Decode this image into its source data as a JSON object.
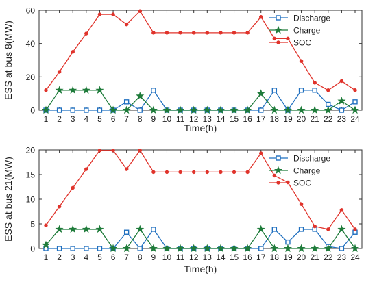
{
  "colors": {
    "discharge": "#1f6fbf",
    "charge": "#1e7b3a",
    "soc": "#e0332b",
    "axis": "#333333"
  },
  "chart_data": [
    {
      "type": "line",
      "ylabel": "ESS at bus 8(MW)",
      "xlabel": "Time(h)",
      "x": [
        1,
        2,
        3,
        4,
        5,
        6,
        7,
        8,
        9,
        10,
        11,
        12,
        13,
        14,
        15,
        16,
        17,
        18,
        19,
        20,
        21,
        22,
        23,
        24
      ],
      "xlim": [
        1,
        24
      ],
      "ylim": [
        0,
        60
      ],
      "yticks": [
        0,
        20,
        40,
        60
      ],
      "legend_position": "top-right",
      "grid": false,
      "series": [
        {
          "name": "Discharge",
          "marker": "square",
          "color_key": "discharge",
          "values": [
            0,
            0,
            0,
            0,
            0,
            0,
            5,
            0,
            12,
            0,
            0,
            0,
            0,
            0,
            0,
            0,
            0,
            12,
            0,
            12,
            12,
            3.5,
            0,
            5
          ]
        },
        {
          "name": "Charge",
          "marker": "star",
          "color_key": "charge",
          "values": [
            0,
            12,
            12,
            12,
            12,
            0,
            0,
            8.5,
            0,
            0,
            0,
            0,
            0,
            0,
            0,
            0,
            10,
            0,
            0,
            0,
            0,
            0,
            5.5,
            0
          ]
        },
        {
          "name": "SOC",
          "marker": "dot",
          "color_key": "soc",
          "values": [
            12,
            23,
            35,
            46,
            57.5,
            57.5,
            51.5,
            59.5,
            46.5,
            46.5,
            46.5,
            46.5,
            46.5,
            46.5,
            46.5,
            46.5,
            56,
            43,
            43,
            29.5,
            16.5,
            12,
            17.5,
            12
          ]
        }
      ]
    },
    {
      "type": "line",
      "ylabel": "ESS at bus 21(MW)",
      "xlabel": "Time(h)",
      "x": [
        1,
        2,
        3,
        4,
        5,
        6,
        7,
        8,
        9,
        10,
        11,
        12,
        13,
        14,
        15,
        16,
        17,
        18,
        19,
        20,
        21,
        22,
        23,
        24
      ],
      "xlim": [
        1,
        24
      ],
      "ylim": [
        0,
        20
      ],
      "yticks": [
        0,
        5,
        10,
        15,
        20
      ],
      "legend_position": "top-right",
      "grid": false,
      "series": [
        {
          "name": "Discharge",
          "marker": "square",
          "color_key": "discharge",
          "values": [
            0,
            0,
            0,
            0,
            0,
            0,
            3.3,
            0,
            3.9,
            0,
            0,
            0,
            0,
            0,
            0,
            0,
            0,
            3.9,
            1.3,
            3.9,
            3.9,
            0.4,
            0,
            3.3
          ]
        },
        {
          "name": "Charge",
          "marker": "star",
          "color_key": "charge",
          "values": [
            0.7,
            3.9,
            3.9,
            3.9,
            3.9,
            0,
            0,
            3.9,
            0,
            0,
            0,
            0,
            0,
            0,
            0,
            0,
            3.9,
            0,
            0,
            0,
            0,
            0,
            3.9,
            0
          ]
        },
        {
          "name": "SOC",
          "marker": "dot",
          "color_key": "soc",
          "values": [
            4.7,
            8.5,
            12.3,
            16.1,
            19.9,
            19.9,
            16.1,
            19.9,
            15.5,
            15.5,
            15.5,
            15.5,
            15.5,
            15.5,
            15.5,
            15.5,
            19.3,
            14.8,
            13.4,
            9.0,
            4.5,
            3.9,
            7.8,
            3.9
          ]
        }
      ]
    }
  ]
}
